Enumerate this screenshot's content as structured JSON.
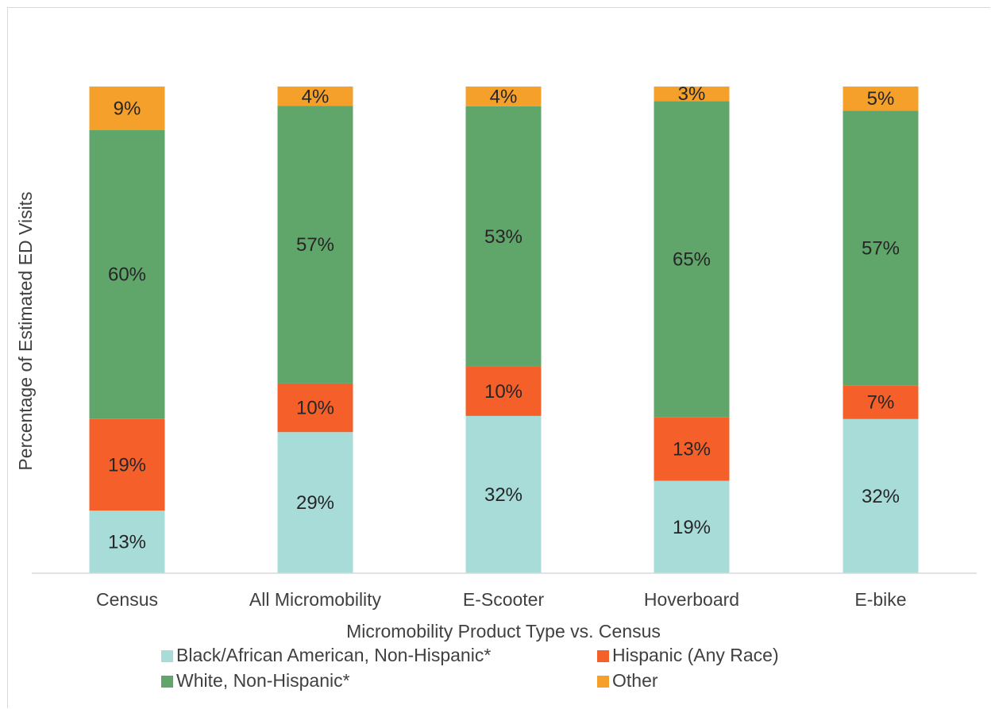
{
  "chart_data": {
    "type": "bar",
    "stacked": true,
    "title": "",
    "xlabel": "Micromobility Product Type vs. Census",
    "ylabel": "Percentage of Estimated ED Visits",
    "ylim": [
      0,
      100
    ],
    "grid": false,
    "legend_position": "bottom",
    "categories": [
      "Census",
      "All Micromobility",
      "E-Scooter",
      "Hoverboard",
      "E-bike"
    ],
    "series": [
      {
        "name": "Black/African American, Non-Hispanic*",
        "color": "#a8dcd8",
        "values": [
          13,
          29,
          32,
          19,
          32
        ],
        "labels": [
          "13%",
          "29%",
          "32%",
          "19%",
          "32%"
        ]
      },
      {
        "name": "Hispanic (Any Race)",
        "color": "#f5602a",
        "values": [
          19,
          10,
          10,
          13,
          7
        ],
        "labels": [
          "19%",
          "10%",
          "10%",
          "13%",
          "7%"
        ]
      },
      {
        "name": "White, Non-Hispanic*",
        "color": "#60a56a",
        "values": [
          60,
          57,
          53,
          65,
          57
        ],
        "labels": [
          "60%",
          "57%",
          "53%",
          "65%",
          "57%"
        ]
      },
      {
        "name": "Other",
        "color": "#f5a02a",
        "values": [
          9,
          4,
          4,
          3,
          5
        ],
        "labels": [
          "9%",
          "4%",
          "4%",
          "3%",
          "5%"
        ]
      }
    ]
  }
}
